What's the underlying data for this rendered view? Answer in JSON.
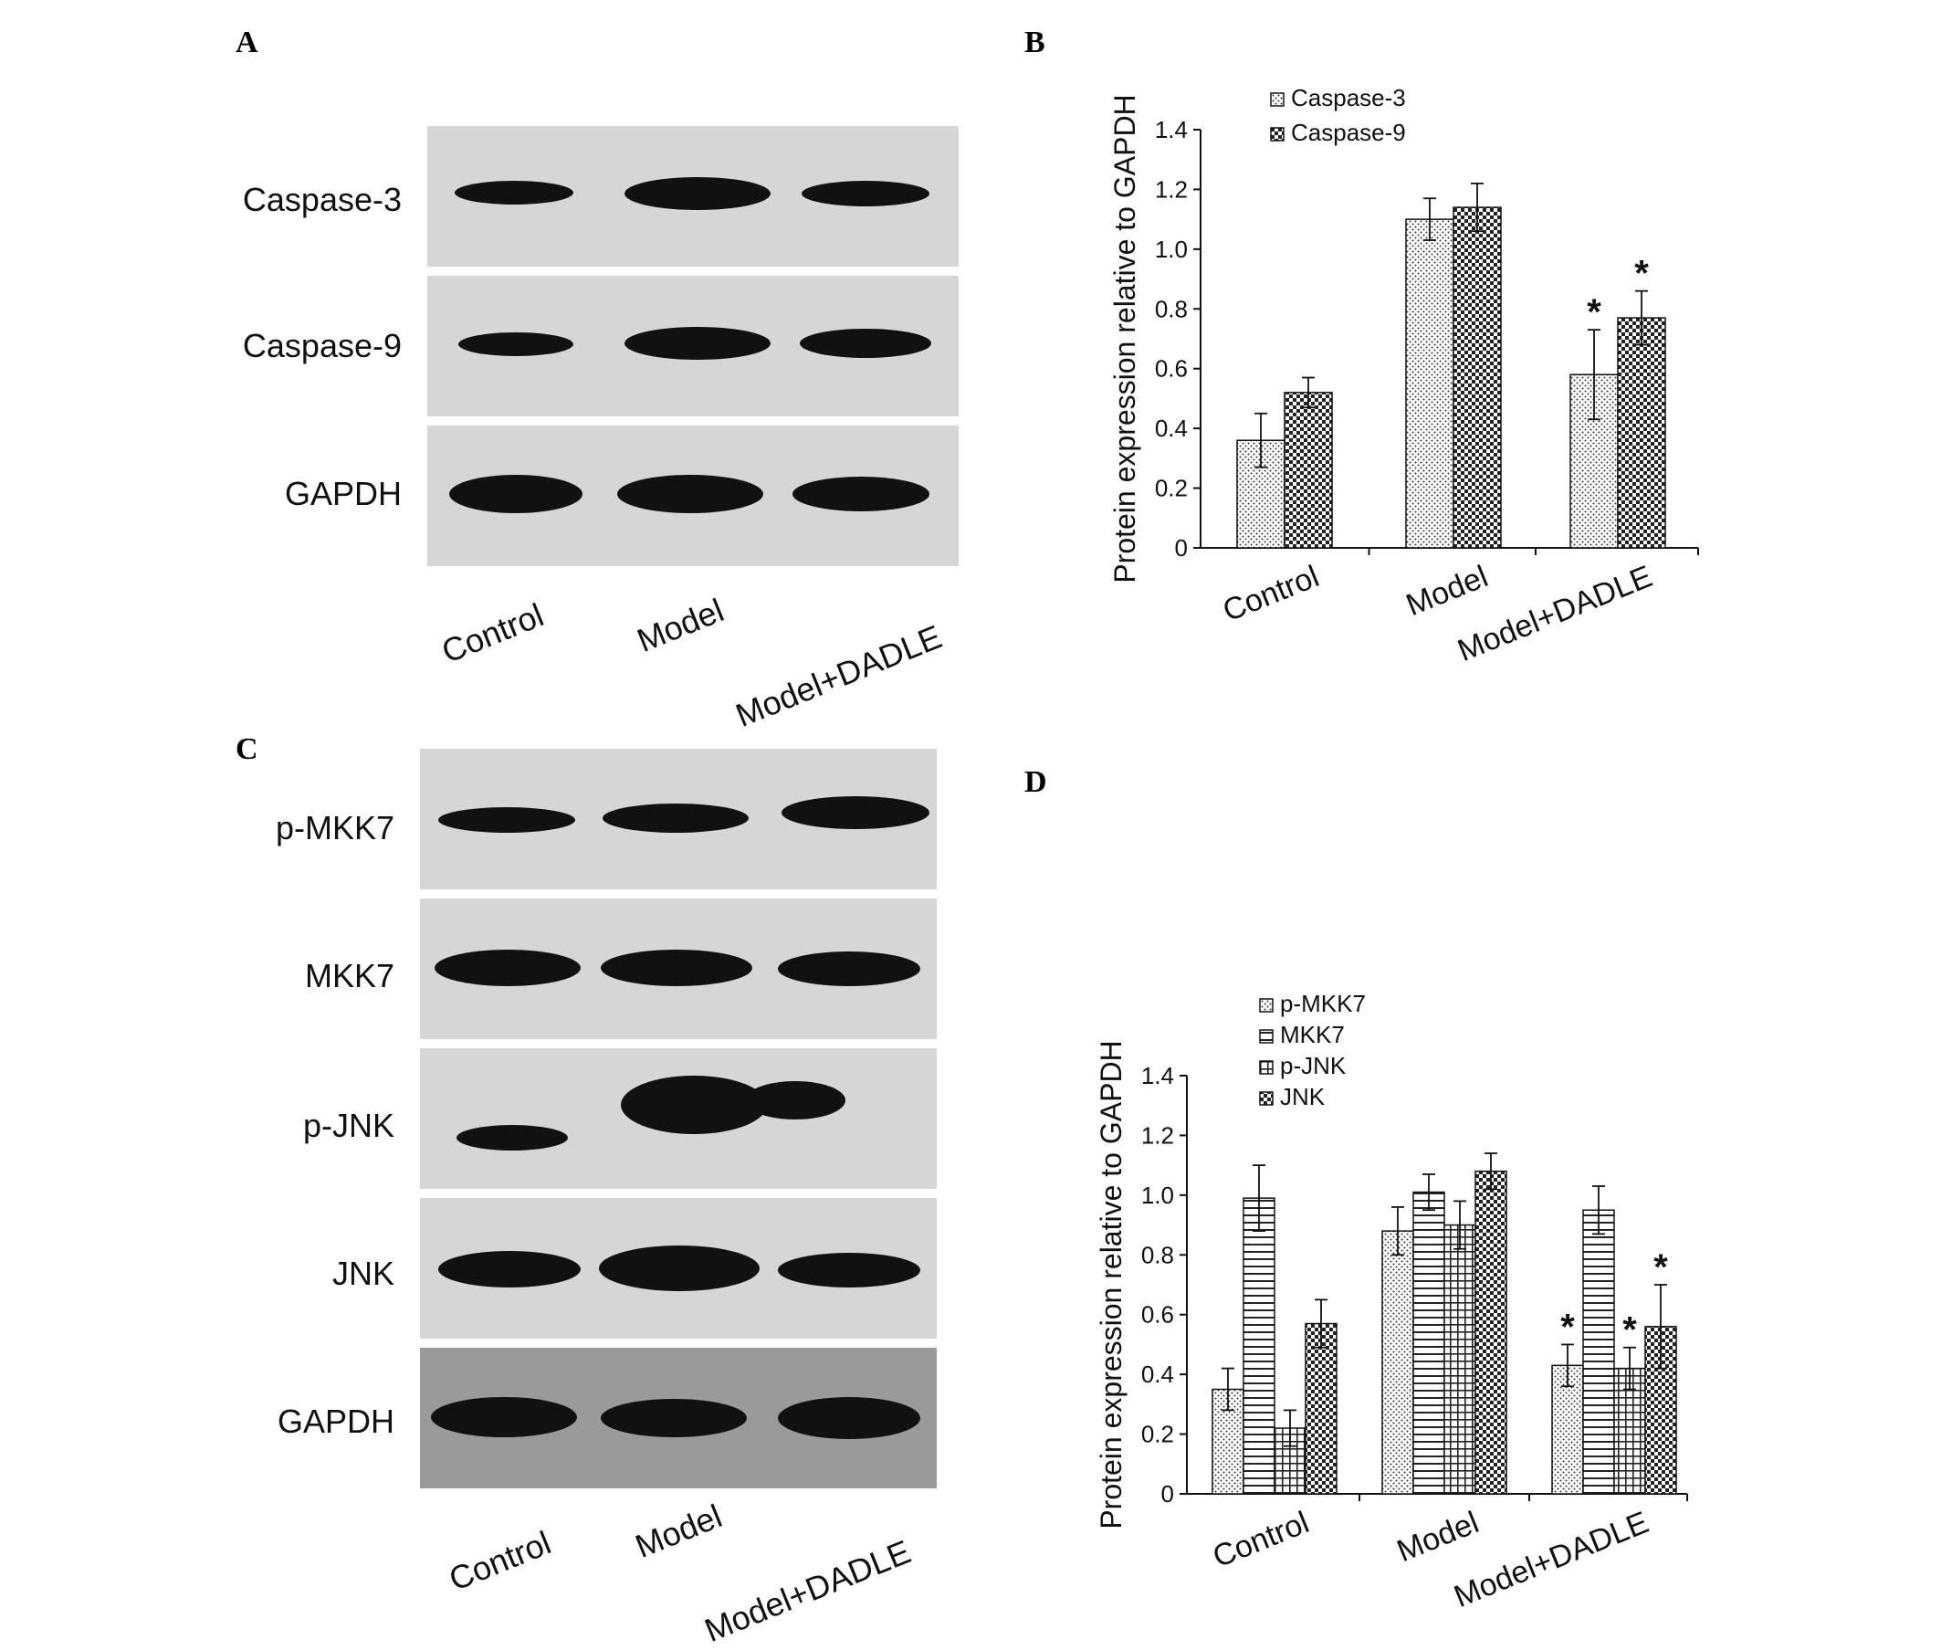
{
  "panels": {
    "a": {
      "letter": "A",
      "rows": [
        "Caspase-3",
        "Caspase-9",
        "GAPDH"
      ],
      "lanes": [
        "Control",
        "Model",
        "Model+DADLE"
      ]
    },
    "c": {
      "letter": "C",
      "rows": [
        "p-MKK7",
        "MKK7",
        "p-JNK",
        "JNK",
        "GAPDH"
      ],
      "lanes": [
        "Control",
        "Model",
        "Model+DADLE"
      ]
    }
  },
  "chart_data": [
    {
      "panel": "B",
      "type": "bar",
      "title": "",
      "xlabel": "",
      "ylabel": "Protein expression relative to GAPDH",
      "ylim": [
        0,
        1.4
      ],
      "yticks": [
        "0",
        "0.2",
        "0.4",
        "0.6",
        "0.8",
        "1.0",
        "1.2",
        "1.4"
      ],
      "categories": [
        "Control",
        "Model",
        "Model+DADLE"
      ],
      "series": [
        {
          "name": "Caspase-3",
          "pattern": "dots",
          "values": [
            0.36,
            1.1,
            0.58
          ],
          "errors": [
            0.09,
            0.07,
            0.15
          ]
        },
        {
          "name": "Caspase-9",
          "pattern": "checker",
          "values": [
            0.52,
            1.14,
            0.77
          ],
          "errors": [
            0.05,
            0.08,
            0.09
          ]
        }
      ],
      "significance": [
        [
          "",
          "",
          "*"
        ],
        [
          "",
          "",
          "*"
        ]
      ],
      "legend_position": "top-left",
      "grid": false
    },
    {
      "panel": "D",
      "type": "bar",
      "title": "",
      "xlabel": "",
      "ylabel": "Protein expression relative to GAPDH",
      "ylim": [
        0,
        1.4
      ],
      "yticks": [
        "0",
        "0.2",
        "0.4",
        "0.6",
        "0.8",
        "1.0",
        "1.2",
        "1.4"
      ],
      "categories": [
        "Control",
        "Model",
        "Model+DADLE"
      ],
      "series": [
        {
          "name": "p-MKK7",
          "pattern": "dots",
          "values": [
            0.35,
            0.88,
            0.43
          ],
          "errors": [
            0.07,
            0.08,
            0.07
          ]
        },
        {
          "name": "MKK7",
          "pattern": "hlines",
          "values": [
            0.99,
            1.01,
            0.95
          ],
          "errors": [
            0.11,
            0.06,
            0.08
          ]
        },
        {
          "name": "p-JNK",
          "pattern": "grid",
          "values": [
            0.22,
            0.9,
            0.42
          ],
          "errors": [
            0.06,
            0.08,
            0.07
          ]
        },
        {
          "name": "JNK",
          "pattern": "checker",
          "values": [
            0.57,
            1.08,
            0.56
          ],
          "errors": [
            0.08,
            0.06,
            0.14
          ]
        }
      ],
      "significance": [
        [
          "",
          "",
          "*"
        ],
        [
          "",
          "",
          ""
        ],
        [
          "",
          "",
          "*"
        ],
        [
          "",
          "",
          "*"
        ]
      ],
      "legend_position": "top-left",
      "grid": false
    }
  ]
}
